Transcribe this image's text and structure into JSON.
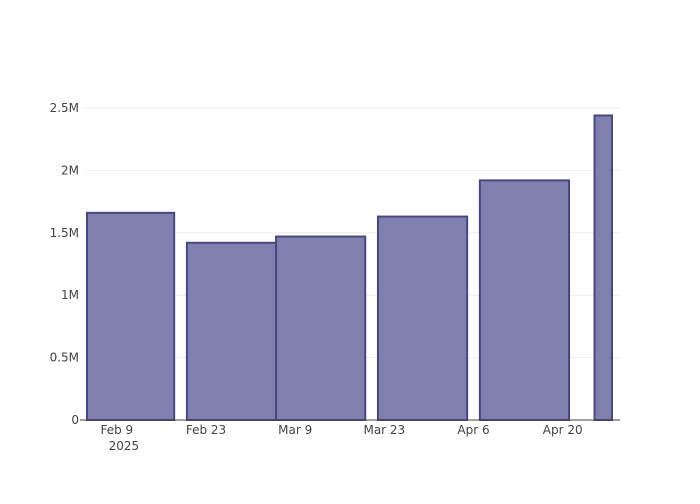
{
  "chart_data": {
    "type": "bar",
    "x_axis": {
      "type": "date",
      "range": [
        "2025-02-04",
        "2025-04-28"
      ],
      "ticks": [
        {
          "date": "2025-02-09",
          "label": "Feb 9",
          "sublabel": "2025"
        },
        {
          "date": "2025-02-23",
          "label": "Feb 23",
          "sublabel": ""
        },
        {
          "date": "2025-03-09",
          "label": "Mar 9",
          "sublabel": ""
        },
        {
          "date": "2025-03-23",
          "label": "Mar 23",
          "sublabel": ""
        },
        {
          "date": "2025-04-06",
          "label": "Apr 6",
          "sublabel": ""
        },
        {
          "date": "2025-04-20",
          "label": "Apr 20",
          "sublabel": ""
        }
      ]
    },
    "y_axis": {
      "range": [
        0,
        2500000
      ],
      "ticks": [
        {
          "value": 0,
          "label": "0"
        },
        {
          "value": 500000,
          "label": "0.5M"
        },
        {
          "value": 1000000,
          "label": "1M"
        },
        {
          "value": 1500000,
          "label": "1.5M"
        },
        {
          "value": 2000000,
          "label": "2M"
        },
        {
          "value": 2500000,
          "label": "2.5M"
        }
      ]
    },
    "grid": true,
    "bars": [
      {
        "start": "2025-02-04",
        "end": "2025-02-17",
        "value": 1660000
      },
      {
        "start": "2025-02-20",
        "end": "2025-03-05",
        "value": 1420000
      },
      {
        "start": "2025-03-06",
        "end": "2025-03-19",
        "value": 1470000
      },
      {
        "start": "2025-03-22",
        "end": "2025-04-04",
        "value": 1630000
      },
      {
        "start": "2025-04-07",
        "end": "2025-04-20",
        "value": 1920000
      },
      {
        "start": "2025-04-25",
        "end": "2025-05-08",
        "value": 2440000
      }
    ],
    "colors": {
      "bar_fill": "#7f7fb0",
      "bar_stroke": "#48487f",
      "grid": "#eeeeee",
      "axis": "#444444"
    }
  }
}
